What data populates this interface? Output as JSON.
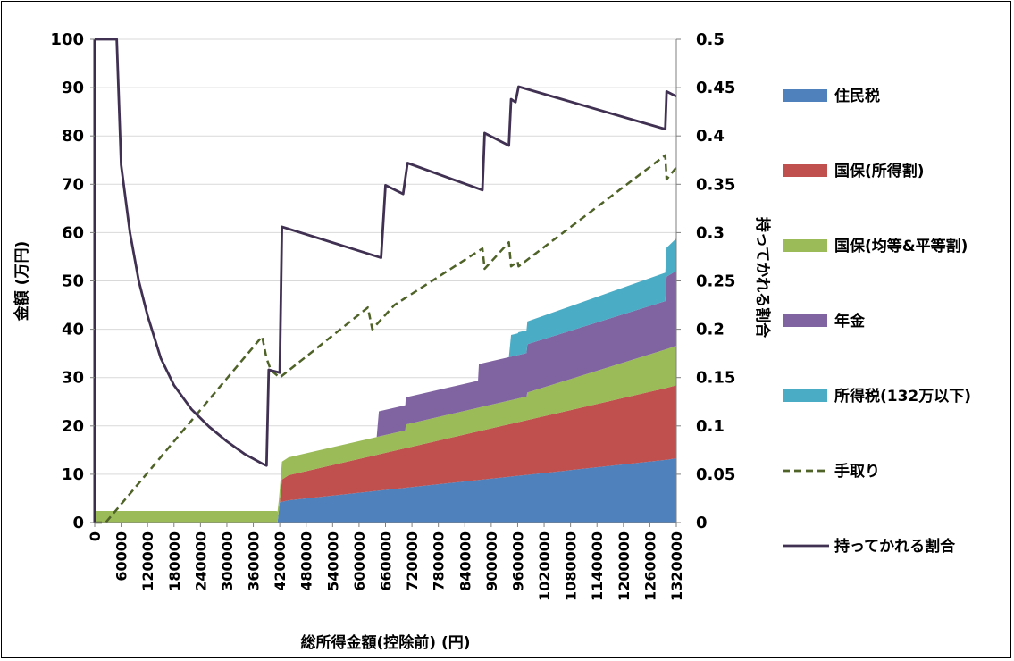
{
  "chart_data": {
    "type": "area",
    "xlabel": "総所得金額(控除前) (円)",
    "ylabel": "金額 (万円)",
    "y2label": "持ってかれる割合",
    "xlim": [
      0,
      1320000
    ],
    "ylim": [
      0,
      100
    ],
    "y2lim": [
      0,
      0.5
    ],
    "x_ticks": [
      "0",
      "60000",
      "120000",
      "180000",
      "240000",
      "300000",
      "360000",
      "420000",
      "480000",
      "540000",
      "600000",
      "660000",
      "720000",
      "780000",
      "840000",
      "900000",
      "960000",
      "1020000",
      "1080000",
      "1140000",
      "1200000",
      "1260000",
      "1320000"
    ],
    "y_ticks": [
      "0",
      "10",
      "20",
      "30",
      "40",
      "50",
      "60",
      "70",
      "80",
      "90",
      "100"
    ],
    "y2_ticks": [
      "0",
      "0.05",
      "0.1",
      "0.15",
      "0.2",
      "0.25",
      "0.3",
      "0.35",
      "0.4",
      "0.45",
      "0.5"
    ],
    "grid": true,
    "legend_position": "right",
    "stack": [
      {
        "name": "住民税",
        "color": "#4F81BD",
        "points": [
          [
            0,
            0
          ],
          [
            415000,
            0
          ],
          [
            420000,
            4.2
          ],
          [
            440000,
            4.6
          ],
          [
            1300000,
            13.0
          ],
          [
            1320000,
            13.3
          ]
        ]
      },
      {
        "name": "国保(所得割)",
        "color": "#C0504D",
        "points": [
          [
            0,
            0
          ],
          [
            415000,
            0
          ],
          [
            420000,
            0
          ],
          [
            425000,
            4.6
          ],
          [
            440000,
            5.2
          ],
          [
            1300000,
            14.9
          ],
          [
            1320000,
            15.1
          ]
        ]
      },
      {
        "name": "国保(均等&平等割)",
        "color": "#9BBB59",
        "points": [
          [
            0,
            2.4
          ],
          [
            410000,
            2.4
          ],
          [
            412000,
            2.4
          ],
          [
            418000,
            2.2
          ],
          [
            425000,
            3.7
          ],
          [
            700000,
            3.7
          ],
          [
            705000,
            3.7
          ],
          [
            706000,
            4.9
          ],
          [
            980000,
            4.9
          ],
          [
            982000,
            5.7
          ],
          [
            1320000,
            8.2
          ]
        ]
      },
      {
        "name": "年金",
        "color": "#8064A2",
        "points": [
          [
            0,
            0
          ],
          [
            640000,
            0
          ],
          [
            645000,
            5.2
          ],
          [
            705000,
            5.2
          ],
          [
            706000,
            5.6
          ],
          [
            870000,
            5.6
          ],
          [
            872000,
            9.0
          ],
          [
            975000,
            9.0
          ],
          [
            980000,
            9.0
          ],
          [
            982000,
            10.0
          ],
          [
            1295000,
            10.0
          ],
          [
            1298000,
            15.0
          ],
          [
            1320000,
            15.5
          ]
        ]
      },
      {
        "name": "所得税(132万以下)",
        "color": "#4BACC6",
        "points": [
          [
            0,
            0
          ],
          [
            940000,
            0
          ],
          [
            945000,
            4.5
          ],
          [
            960000,
            4.5
          ],
          [
            962000,
            4.7
          ],
          [
            980000,
            4.7
          ],
          [
            982000,
            4.7
          ],
          [
            1295000,
            5.9
          ],
          [
            1320000,
            6.7
          ]
        ]
      }
    ],
    "lines": [
      {
        "name": "手取り",
        "color": "#4F6228",
        "axis": "y",
        "dash": true,
        "points": [
          [
            0,
            0
          ],
          [
            25000,
            0
          ],
          [
            380000,
            38.5
          ],
          [
            390000,
            34.0
          ],
          [
            400000,
            31.5
          ],
          [
            420000,
            30.0
          ],
          [
            620000,
            44.5
          ],
          [
            630000,
            40.0
          ],
          [
            660000,
            43.0
          ],
          [
            680000,
            45.0
          ],
          [
            880000,
            56.7
          ],
          [
            885000,
            52.5
          ],
          [
            940000,
            58.0
          ],
          [
            945000,
            53.0
          ],
          [
            960000,
            54.0
          ],
          [
            962000,
            53.0
          ],
          [
            1295000,
            76.0
          ],
          [
            1298000,
            71.0
          ],
          [
            1320000,
            73.5
          ]
        ]
      },
      {
        "name": "持ってかれる割合",
        "color": "#403152",
        "axis": "y2",
        "dash": false,
        "points": [
          [
            0,
            0.5
          ],
          [
            50000,
            0.5
          ],
          [
            60000,
            0.37
          ],
          [
            80000,
            0.3
          ],
          [
            100000,
            0.25
          ],
          [
            120000,
            0.214
          ],
          [
            150000,
            0.17
          ],
          [
            180000,
            0.142
          ],
          [
            220000,
            0.117
          ],
          [
            260000,
            0.099
          ],
          [
            300000,
            0.084
          ],
          [
            340000,
            0.071
          ],
          [
            380000,
            0.061
          ],
          [
            390000,
            0.059
          ],
          [
            395000,
            0.158
          ],
          [
            420000,
            0.155
          ],
          [
            425000,
            0.306
          ],
          [
            650000,
            0.274
          ],
          [
            660000,
            0.349
          ],
          [
            700000,
            0.34
          ],
          [
            710000,
            0.372
          ],
          [
            880000,
            0.344
          ],
          [
            885000,
            0.403
          ],
          [
            940000,
            0.39
          ],
          [
            945000,
            0.438
          ],
          [
            955000,
            0.435
          ],
          [
            962000,
            0.451
          ],
          [
            1295000,
            0.407
          ],
          [
            1298000,
            0.446
          ],
          [
            1320000,
            0.441
          ]
        ]
      }
    ]
  },
  "legend": [
    {
      "label": "住民税",
      "color": "#4F81BD",
      "kind": "swatch"
    },
    {
      "label": "国保(所得割)",
      "color": "#C0504D",
      "kind": "swatch"
    },
    {
      "label": "国保(均等&平等割)",
      "color": "#9BBB59",
      "kind": "swatch"
    },
    {
      "label": "年金",
      "color": "#8064A2",
      "kind": "swatch"
    },
    {
      "label": "所得税(132万以下)",
      "color": "#4BACC6",
      "kind": "swatch"
    },
    {
      "label": "手取り",
      "color": "#4F6228",
      "kind": "dash"
    },
    {
      "label": "持ってかれる割合",
      "color": "#403152",
      "kind": "line"
    }
  ]
}
